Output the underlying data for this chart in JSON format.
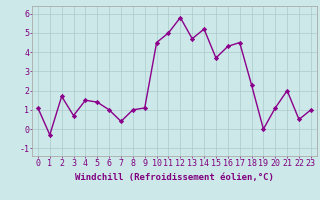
{
  "x": [
    0,
    1,
    2,
    3,
    4,
    5,
    6,
    7,
    8,
    9,
    10,
    11,
    12,
    13,
    14,
    15,
    16,
    17,
    18,
    19,
    20,
    21,
    22,
    23
  ],
  "y": [
    1.1,
    -0.3,
    1.7,
    0.7,
    1.5,
    1.4,
    1.0,
    0.4,
    1.0,
    1.1,
    4.5,
    5.0,
    5.8,
    4.7,
    5.2,
    3.7,
    4.3,
    4.5,
    2.3,
    0.0,
    1.1,
    2.0,
    0.5,
    1.0
  ],
  "line_color": "#8b008b",
  "marker": "D",
  "marker_size": 2.2,
  "linewidth": 1.0,
  "xlabel": "Windchill (Refroidissement éolien,°C)",
  "xlabel_fontsize": 6.5,
  "ylim": [
    -1.4,
    6.4
  ],
  "xlim": [
    -0.5,
    23.5
  ],
  "yticks": [
    -1,
    0,
    1,
    2,
    3,
    4,
    5,
    6
  ],
  "grid_color": "#aacccc",
  "bg_color": "#cce8e8",
  "tick_fontsize": 6.0,
  "fig_width": 3.2,
  "fig_height": 2.0,
  "dpi": 100
}
